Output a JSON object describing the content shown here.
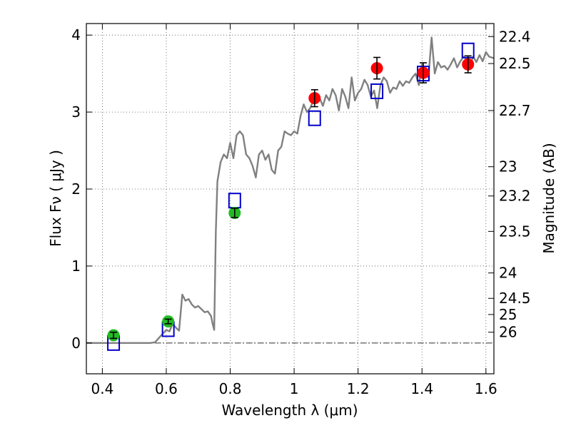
{
  "chart_data": {
    "type": "scatter",
    "xlabel": "Wavelength  λ (μm)",
    "ylabel": "Flux  Fν  ( μJy )",
    "y2label": "Magnitude (AB)",
    "xlim": [
      0.35,
      1.625
    ],
    "ylim": [
      -0.4,
      4.15
    ],
    "grid": true,
    "x_ticks": [
      0.4,
      0.6,
      0.8,
      1.0,
      1.2,
      1.4,
      1.6
    ],
    "x_tick_labels": [
      "0.4",
      "0.6",
      "0.8",
      "1",
      "1.2",
      "1.4",
      "1.6"
    ],
    "y_ticks": [
      0,
      1,
      2,
      3,
      4
    ],
    "y_tick_labels": [
      "0",
      "1",
      "2",
      "3",
      "4"
    ],
    "y2_ticks": [
      {
        "label": "22.4",
        "flux": 3.98
      },
      {
        "label": "22.5",
        "flux": 3.63
      },
      {
        "label": "22.7",
        "flux": 3.02
      },
      {
        "label": "23",
        "flux": 2.29
      },
      {
        "label": "23.2",
        "flux": 1.91
      },
      {
        "label": "23.5",
        "flux": 1.45
      },
      {
        "label": "24",
        "flux": 0.91
      },
      {
        "label": "24.5",
        "flux": 0.58
      },
      {
        "label": "25",
        "flux": 0.37
      },
      {
        "label": "26",
        "flux": 0.14
      }
    ],
    "colors": {
      "model": "#808080",
      "optical_points": "#22bb22",
      "nir_points": "#ff0000",
      "model_photometry": "#0000cc",
      "error_bars": "#000000"
    },
    "series": [
      {
        "role": "model-spectrum-line",
        "x": [
          0.35,
          0.4,
          0.45,
          0.5,
          0.55,
          0.565,
          0.58,
          0.6,
          0.61,
          0.62,
          0.63,
          0.64,
          0.65,
          0.66,
          0.67,
          0.68,
          0.69,
          0.7,
          0.71,
          0.72,
          0.73,
          0.74,
          0.745,
          0.75,
          0.755,
          0.76,
          0.77,
          0.78,
          0.79,
          0.8,
          0.81,
          0.82,
          0.83,
          0.84,
          0.85,
          0.86,
          0.87,
          0.88,
          0.89,
          0.9,
          0.91,
          0.92,
          0.93,
          0.94,
          0.95,
          0.96,
          0.97,
          0.98,
          0.99,
          1.0,
          1.01,
          1.02,
          1.03,
          1.04,
          1.05,
          1.06,
          1.07,
          1.08,
          1.09,
          1.1,
          1.11,
          1.12,
          1.13,
          1.14,
          1.15,
          1.16,
          1.17,
          1.18,
          1.19,
          1.2,
          1.21,
          1.22,
          1.23,
          1.24,
          1.25,
          1.26,
          1.27,
          1.28,
          1.29,
          1.3,
          1.31,
          1.32,
          1.33,
          1.34,
          1.35,
          1.36,
          1.37,
          1.38,
          1.39,
          1.4,
          1.41,
          1.42,
          1.43,
          1.44,
          1.45,
          1.46,
          1.47,
          1.48,
          1.49,
          1.5,
          1.51,
          1.52,
          1.53,
          1.54,
          1.55,
          1.56,
          1.57,
          1.58,
          1.59,
          1.6,
          1.61,
          1.625
        ],
        "y": [
          0,
          0,
          0,
          0,
          0,
          0.01,
          0.08,
          0.17,
          0.15,
          0.25,
          0.2,
          0.16,
          0.63,
          0.55,
          0.57,
          0.5,
          0.46,
          0.48,
          0.44,
          0.4,
          0.41,
          0.35,
          0.25,
          0.17,
          1.45,
          2.1,
          2.35,
          2.45,
          2.4,
          2.6,
          2.4,
          2.7,
          2.75,
          2.7,
          2.45,
          2.4,
          2.3,
          2.15,
          2.45,
          2.5,
          2.38,
          2.45,
          2.25,
          2.2,
          2.5,
          2.55,
          2.75,
          2.72,
          2.7,
          2.75,
          2.72,
          2.95,
          3.1,
          3.0,
          3.05,
          3.15,
          3.12,
          3.18,
          3.08,
          3.22,
          3.15,
          3.3,
          3.22,
          3.02,
          3.3,
          3.2,
          3.05,
          3.45,
          3.15,
          3.25,
          3.3,
          3.42,
          3.35,
          3.2,
          3.28,
          3.05,
          3.35,
          3.45,
          3.4,
          3.25,
          3.32,
          3.3,
          3.4,
          3.34,
          3.4,
          3.38,
          3.45,
          3.5,
          3.35,
          3.62,
          3.55,
          3.45,
          3.97,
          3.5,
          3.65,
          3.58,
          3.6,
          3.55,
          3.62,
          3.7,
          3.58,
          3.66,
          3.72,
          3.68,
          3.6,
          3.72,
          3.65,
          3.74,
          3.66,
          3.78,
          3.72,
          3.7
        ]
      },
      {
        "role": "observed-optical",
        "marker": "circle",
        "points": [
          {
            "x": 0.435,
            "y": 0.1,
            "err": 0.04
          },
          {
            "x": 0.606,
            "y": 0.28,
            "err": 0.03
          },
          {
            "x": 0.814,
            "y": 1.69,
            "err": 0.06
          }
        ]
      },
      {
        "role": "observed-nir",
        "marker": "circle",
        "points": [
          {
            "x": 1.064,
            "y": 3.18,
            "err": 0.11
          },
          {
            "x": 1.259,
            "y": 3.57,
            "err": 0.14
          },
          {
            "x": 1.404,
            "y": 3.51,
            "err": 0.13
          },
          {
            "x": 1.544,
            "y": 3.62,
            "err": 0.11
          }
        ]
      },
      {
        "role": "model-photometry",
        "marker": "square",
        "points": [
          {
            "x": 0.435,
            "y": 0.0
          },
          {
            "x": 0.606,
            "y": 0.18
          },
          {
            "x": 0.814,
            "y": 1.85
          },
          {
            "x": 1.064,
            "y": 2.92
          },
          {
            "x": 1.259,
            "y": 3.27
          },
          {
            "x": 1.404,
            "y": 3.5
          },
          {
            "x": 1.544,
            "y": 3.8
          }
        ]
      }
    ]
  }
}
